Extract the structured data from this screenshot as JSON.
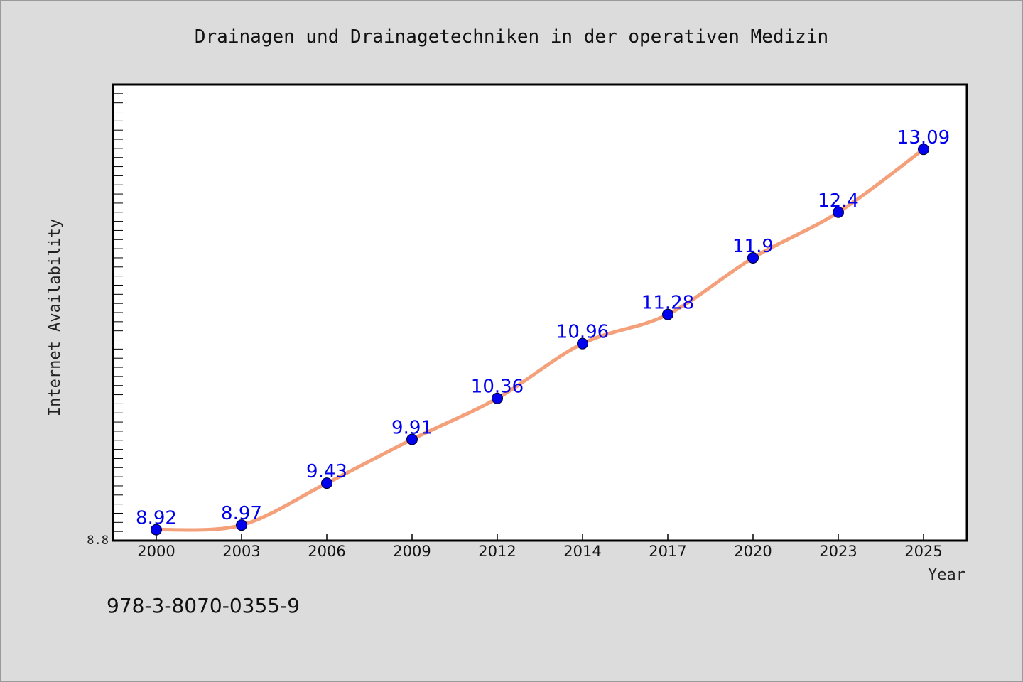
{
  "isbn": "978-3-8070-0355-9",
  "colors": {
    "background": "#dcdcdc",
    "plot_background": "#ffffff",
    "line": "#f4a07a",
    "marker": "#0000ee",
    "data_label": "#0000ee"
  },
  "chart_data": {
    "type": "line",
    "title": "Drainagen und Drainagetechniken in der operativen Medizin",
    "xlabel": "Year",
    "ylabel": "Internet Availability",
    "x": [
      "2000",
      "2003",
      "2006",
      "2009",
      "2012",
      "2014",
      "2017",
      "2020",
      "2023",
      "2025"
    ],
    "series": [
      {
        "values": [
          8.92,
          8.97,
          9.43,
          9.91,
          10.36,
          10.96,
          11.28,
          11.9,
          12.4,
          13.09
        ],
        "labels": [
          "8.92",
          "8.97",
          "9.43",
          "9.91",
          "10.36",
          "10.96",
          "11.28",
          "11.9",
          "12.4",
          "13.09"
        ]
      }
    ],
    "ylim": [
      8.8,
      13.8
    ],
    "yticks_labeled": [
      "8.8"
    ],
    "grid": false,
    "legend": "none"
  }
}
